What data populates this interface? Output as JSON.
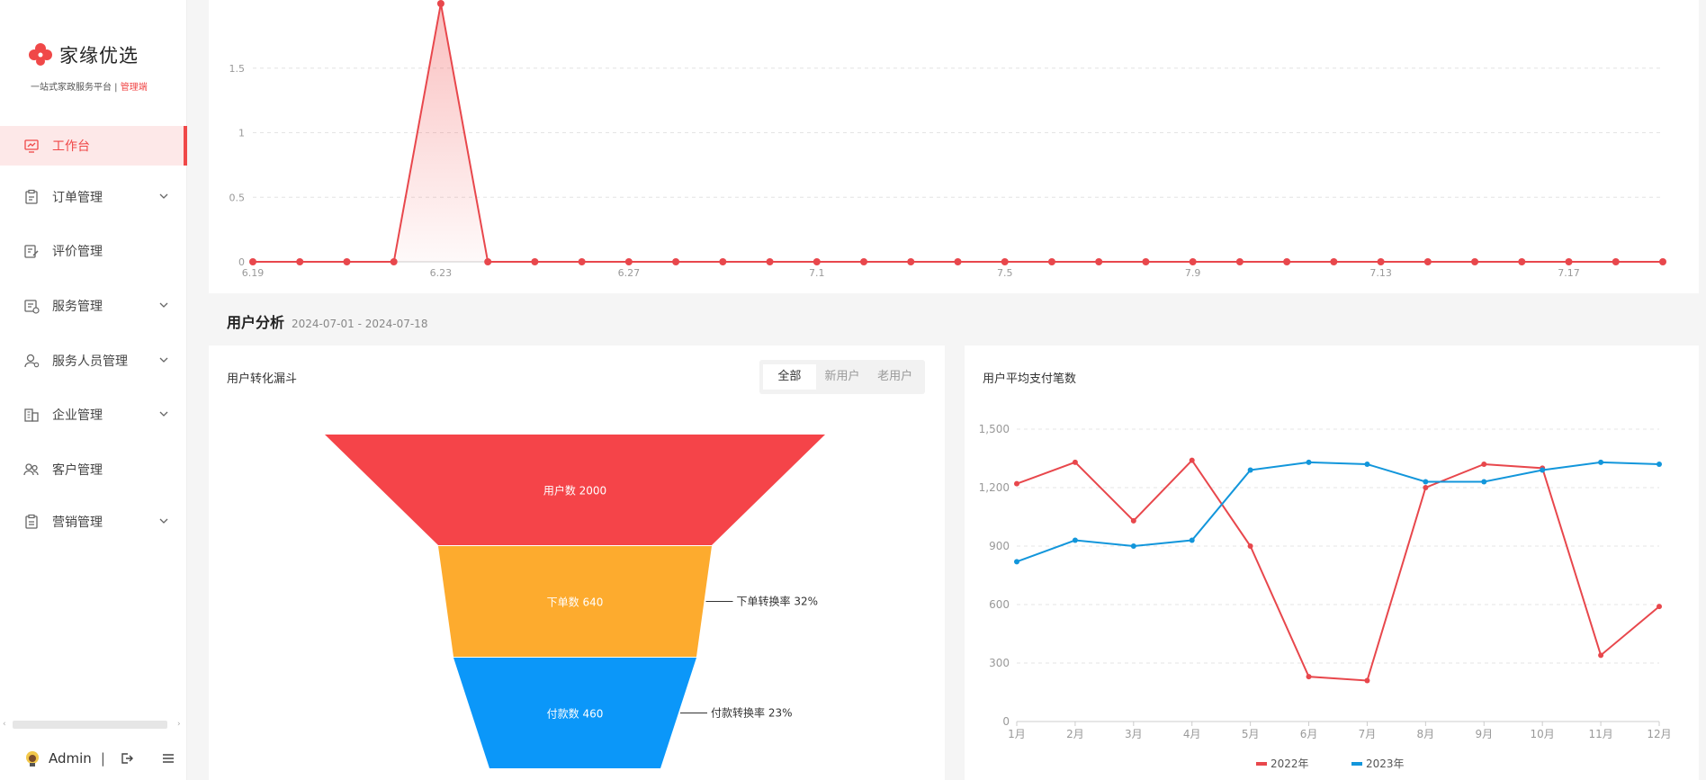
{
  "brand": {
    "name": "家缘优选",
    "tagline": "一站式家政服务平台",
    "role": "管理端"
  },
  "menu": [
    {
      "label": "工作台",
      "icon": "dashboard-icon",
      "active": true,
      "expandable": false
    },
    {
      "label": "订单管理",
      "icon": "clipboard-icon",
      "active": false,
      "expandable": true
    },
    {
      "label": "评价管理",
      "icon": "edit-note-icon",
      "active": false,
      "expandable": false
    },
    {
      "label": "服务管理",
      "icon": "service-doc-icon",
      "active": false,
      "expandable": true
    },
    {
      "label": "服务人员管理",
      "icon": "staff-icon",
      "active": false,
      "expandable": true
    },
    {
      "label": "企业管理",
      "icon": "building-icon",
      "active": false,
      "expandable": true
    },
    {
      "label": "客户管理",
      "icon": "customers-icon",
      "active": false,
      "expandable": false
    },
    {
      "label": "营销管理",
      "icon": "marketing-icon",
      "active": false,
      "expandable": true
    }
  ],
  "user": {
    "name": "Admin",
    "separator": "|"
  },
  "colors": {
    "accent": "#f04848",
    "funnel1": "#f54449",
    "funnel2": "#fdab2e",
    "funnel3": "#0b97f9",
    "series2022": "#e8474c",
    "series2023": "#1296db"
  },
  "top_chart": {
    "chart_data": {
      "type": "line",
      "x": [
        "6.19",
        "6.20",
        "6.21",
        "6.22",
        "6.23",
        "6.24",
        "6.25",
        "6.26",
        "6.27",
        "6.28",
        "6.29",
        "6.30",
        "7.1",
        "7.2",
        "7.3",
        "7.4",
        "7.5",
        "7.6",
        "7.7",
        "7.8",
        "7.9",
        "7.10",
        "7.11",
        "7.12",
        "7.13",
        "7.14",
        "7.15",
        "7.16",
        "7.17",
        "7.18",
        "7.19"
      ],
      "values": [
        0,
        0,
        0,
        0,
        2,
        0,
        0,
        0,
        0,
        0,
        0,
        0,
        0,
        0,
        0,
        0,
        0,
        0,
        0,
        0,
        0,
        0,
        0,
        0,
        0,
        0,
        0,
        0,
        0,
        0,
        0
      ],
      "x_tick_labels": [
        "6.19",
        "6.23",
        "6.27",
        "7.1",
        "7.5",
        "7.9",
        "7.13",
        "7.17"
      ],
      "y_ticks": [
        "0",
        "0.5",
        "1",
        "1.5"
      ],
      "ylim": [
        0,
        2
      ],
      "grid": true,
      "area_fill": true
    }
  },
  "section": {
    "title": "用户分析",
    "date_range": "2024-07-01 - 2024-07-18"
  },
  "funnel_card": {
    "title": "用户转化漏斗",
    "tabs": [
      "全部",
      "新用户",
      "老用户"
    ],
    "active_tab": 0,
    "chart_data": {
      "type": "funnel",
      "stages": [
        {
          "label": "用户数 2000",
          "value": 2000
        },
        {
          "label": "下单数 640",
          "value": 640,
          "rate_label": "下单转换率 32%"
        },
        {
          "label": "付款数 460",
          "value": 460,
          "rate_label": "付款转换率 23%"
        }
      ]
    }
  },
  "line_card": {
    "title": "用户平均支付笔数",
    "chart_data": {
      "type": "line",
      "categories": [
        "1月",
        "2月",
        "3月",
        "4月",
        "5月",
        "6月",
        "7月",
        "8月",
        "9月",
        "10月",
        "11月",
        "12月"
      ],
      "series": [
        {
          "name": "2022年",
          "values": [
            1220,
            1330,
            1030,
            1340,
            900,
            230,
            210,
            1200,
            1320,
            1300,
            340,
            590
          ]
        },
        {
          "name": "2023年",
          "values": [
            820,
            930,
            900,
            930,
            1290,
            1330,
            1320,
            1230,
            1230,
            1290,
            1330,
            1320
          ]
        }
      ],
      "y_ticks": [
        "0",
        "300",
        "600",
        "900",
        "1,200",
        "1,500"
      ],
      "ylim": [
        0,
        1500
      ],
      "grid": true,
      "legend": "bottom"
    }
  }
}
